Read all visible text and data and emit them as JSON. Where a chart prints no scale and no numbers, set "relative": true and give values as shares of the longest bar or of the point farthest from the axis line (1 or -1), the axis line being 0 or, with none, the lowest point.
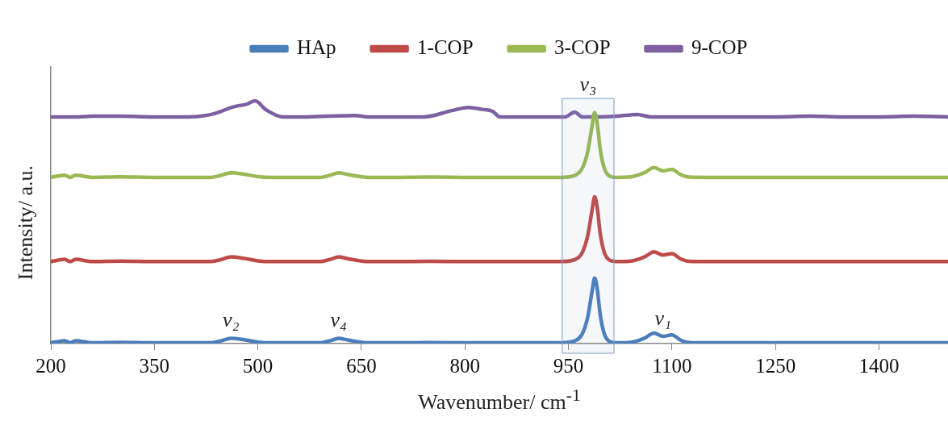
{
  "chart_data": {
    "type": "line",
    "relative": true,
    "xlabel": "Wavenumber/ cm$^{-1}$",
    "ylabel": "Intensity/ a.u.",
    "legend": "top",
    "marker": "none",
    "line_style": "solid",
    "xlim": [
      200,
      1500
    ],
    "xticks": [
      200,
      350,
      500,
      650,
      800,
      950,
      1100,
      1250,
      1400
    ],
    "x": [
      200,
      220,
      228,
      236,
      260,
      300,
      350,
      400,
      430,
      445,
      461,
      480,
      500,
      520,
      560,
      590,
      605,
      617,
      630,
      660,
      700,
      750,
      800,
      850,
      900,
      940,
      960,
      970,
      978,
      984,
      988,
      992,
      996,
      1002,
      1010,
      1020,
      1040,
      1060,
      1074,
      1087,
      1100,
      1112,
      1125,
      1150,
      1200,
      1250,
      1300,
      1350,
      1400,
      1450,
      1500
    ],
    "series": [
      {
        "name": "HAp",
        "color": "#4a7ebb",
        "values": [
          0.003,
          0.012,
          0.003,
          0.012,
          0.003,
          0.005,
          0.003,
          0.003,
          0.003,
          0.01,
          0.022,
          0.016,
          0.006,
          0.003,
          0.003,
          0.003,
          0.012,
          0.022,
          0.015,
          0.003,
          0.003,
          0.004,
          0.003,
          0.003,
          0.003,
          0.003,
          0.012,
          0.04,
          0.11,
          0.21,
          0.27,
          0.22,
          0.12,
          0.04,
          0.008,
          0.003,
          0.005,
          0.022,
          0.043,
          0.03,
          0.036,
          0.015,
          0.004,
          0.003,
          0.003,
          0.003,
          0.003,
          0.003,
          0.003,
          0.003,
          0.003
        ]
      },
      {
        "name": "1-COP",
        "color": "#be4b48",
        "values": [
          0.338,
          0.347,
          0.338,
          0.347,
          0.338,
          0.34,
          0.338,
          0.338,
          0.338,
          0.345,
          0.357,
          0.351,
          0.341,
          0.338,
          0.338,
          0.338,
          0.347,
          0.357,
          0.35,
          0.338,
          0.338,
          0.339,
          0.338,
          0.338,
          0.338,
          0.338,
          0.347,
          0.375,
          0.445,
          0.545,
          0.605,
          0.555,
          0.455,
          0.375,
          0.343,
          0.338,
          0.34,
          0.357,
          0.378,
          0.365,
          0.371,
          0.35,
          0.339,
          0.338,
          0.338,
          0.338,
          0.338,
          0.338,
          0.338,
          0.338,
          0.338
        ]
      },
      {
        "name": "3-COP",
        "color": "#98b954",
        "values": [
          0.685,
          0.694,
          0.685,
          0.694,
          0.685,
          0.687,
          0.685,
          0.685,
          0.685,
          0.692,
          0.704,
          0.698,
          0.688,
          0.685,
          0.685,
          0.685,
          0.694,
          0.704,
          0.697,
          0.685,
          0.685,
          0.686,
          0.685,
          0.685,
          0.685,
          0.685,
          0.694,
          0.722,
          0.792,
          0.892,
          0.952,
          0.902,
          0.802,
          0.722,
          0.69,
          0.685,
          0.687,
          0.704,
          0.725,
          0.712,
          0.718,
          0.697,
          0.686,
          0.685,
          0.685,
          0.685,
          0.685,
          0.685,
          0.685,
          0.685,
          0.685
        ]
      },
      {
        "name": "9-COP",
        "color": "#7d60a0",
        "x": [
          200,
          240,
          260,
          300,
          350,
          400,
          436,
          465,
          483,
          496,
          512,
          536,
          560,
          600,
          640,
          660,
          700,
          740,
          781,
          805,
          825,
          840,
          851,
          900,
          945,
          959,
          970,
          990,
          1020,
          1050,
          1070,
          1100,
          1150,
          1200,
          1250,
          1300,
          1350,
          1400,
          1450,
          1500
        ],
        "values": [
          0.934,
          0.934,
          0.937,
          0.937,
          0.934,
          0.934,
          0.947,
          0.976,
          0.986,
          1,
          0.963,
          0.934,
          0.934,
          0.937,
          0.94,
          0.934,
          0.934,
          0.934,
          0.96,
          0.973,
          0.965,
          0.957,
          0.934,
          0.934,
          0.934,
          0.954,
          0.934,
          0.934,
          0.937,
          0.944,
          0.934,
          0.934,
          0.934,
          0.934,
          0.934,
          0.937,
          0.934,
          0.934,
          0.937,
          0.934
        ]
      }
    ],
    "bands": [
      {
        "axis": "x",
        "from": 941,
        "to": 1016,
        "color": "#7f9cc7"
      }
    ],
    "annotations": [
      "v₃",
      {
        "text": "v₂",
        "x": 461,
        "y": 0.022
      },
      {
        "text": "v₄",
        "x": 617,
        "y": 0.022
      },
      {
        "text": "v₁",
        "x": 1087,
        "y": 0.03
      }
    ]
  }
}
